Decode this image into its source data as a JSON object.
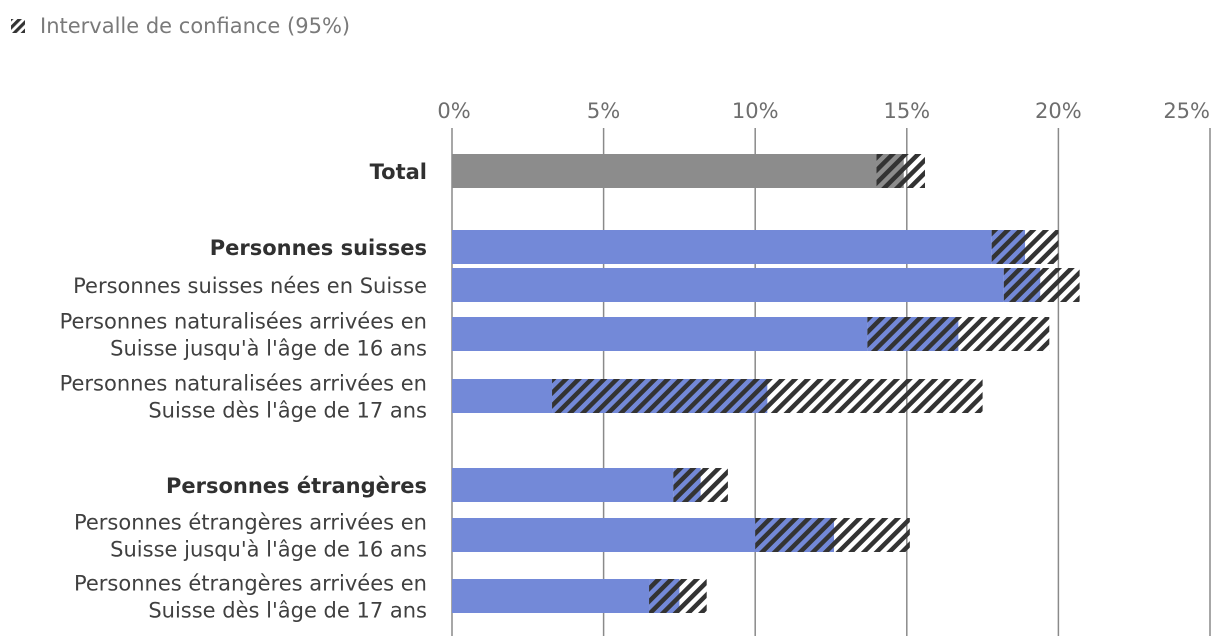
{
  "legend": {
    "label": "Intervalle de confiance (95%)",
    "icon": "hatch-icon"
  },
  "colors": {
    "total_bar": "#8c8c8c",
    "group_bar": "#7389d8",
    "hatch": "#333333",
    "grid": "#8a8a8a"
  },
  "chart_data": {
    "type": "bar",
    "orientation": "horizontal",
    "title": "",
    "xlabel": "",
    "ylabel": "",
    "xlim": [
      0,
      25
    ],
    "x_ticks": [
      "0%",
      "5%",
      "10%",
      "15%",
      "20%",
      "25%"
    ],
    "grid": true,
    "legend_position": "top-left",
    "categories": [
      {
        "label": "Total",
        "bold": true,
        "value": 14.9,
        "ci_low": 14.0,
        "ci_high": 15.6,
        "color_key": "total_bar",
        "group": "total"
      },
      {
        "label": "Personnes suisses",
        "bold": true,
        "value": 18.9,
        "ci_low": 17.8,
        "ci_high": 20.0,
        "color_key": "group_bar",
        "group": "suisses"
      },
      {
        "label": "Personnes suisses nées en Suisse",
        "bold": false,
        "value": 19.4,
        "ci_low": 18.2,
        "ci_high": 20.7,
        "color_key": "group_bar",
        "group": "suisses"
      },
      {
        "label": "Personnes naturalisées arrivées en\nSuisse jusqu'à l'âge de 16 ans",
        "bold": false,
        "value": 16.7,
        "ci_low": 13.7,
        "ci_high": 19.7,
        "color_key": "group_bar",
        "group": "suisses"
      },
      {
        "label": "Personnes naturalisées arrivées en\nSuisse dès l'âge de 17 ans",
        "bold": false,
        "value": 10.4,
        "ci_low": 3.3,
        "ci_high": 17.5,
        "color_key": "group_bar",
        "group": "suisses"
      },
      {
        "label": "Personnes étrangères",
        "bold": true,
        "value": 8.2,
        "ci_low": 7.3,
        "ci_high": 9.1,
        "color_key": "group_bar",
        "group": "etrangeres"
      },
      {
        "label": "Personnes étrangères arrivées en\nSuisse jusqu'à l'âge de 16 ans",
        "bold": false,
        "value": 12.6,
        "ci_low": 10.0,
        "ci_high": 15.1,
        "color_key": "group_bar",
        "group": "etrangeres"
      },
      {
        "label": "Personnes étrangères arrivées en\nSuisse dès l'âge de 17 ans",
        "bold": false,
        "value": 7.5,
        "ci_low": 6.5,
        "ci_high": 8.4,
        "color_key": "group_bar",
        "group": "etrangeres"
      }
    ]
  }
}
